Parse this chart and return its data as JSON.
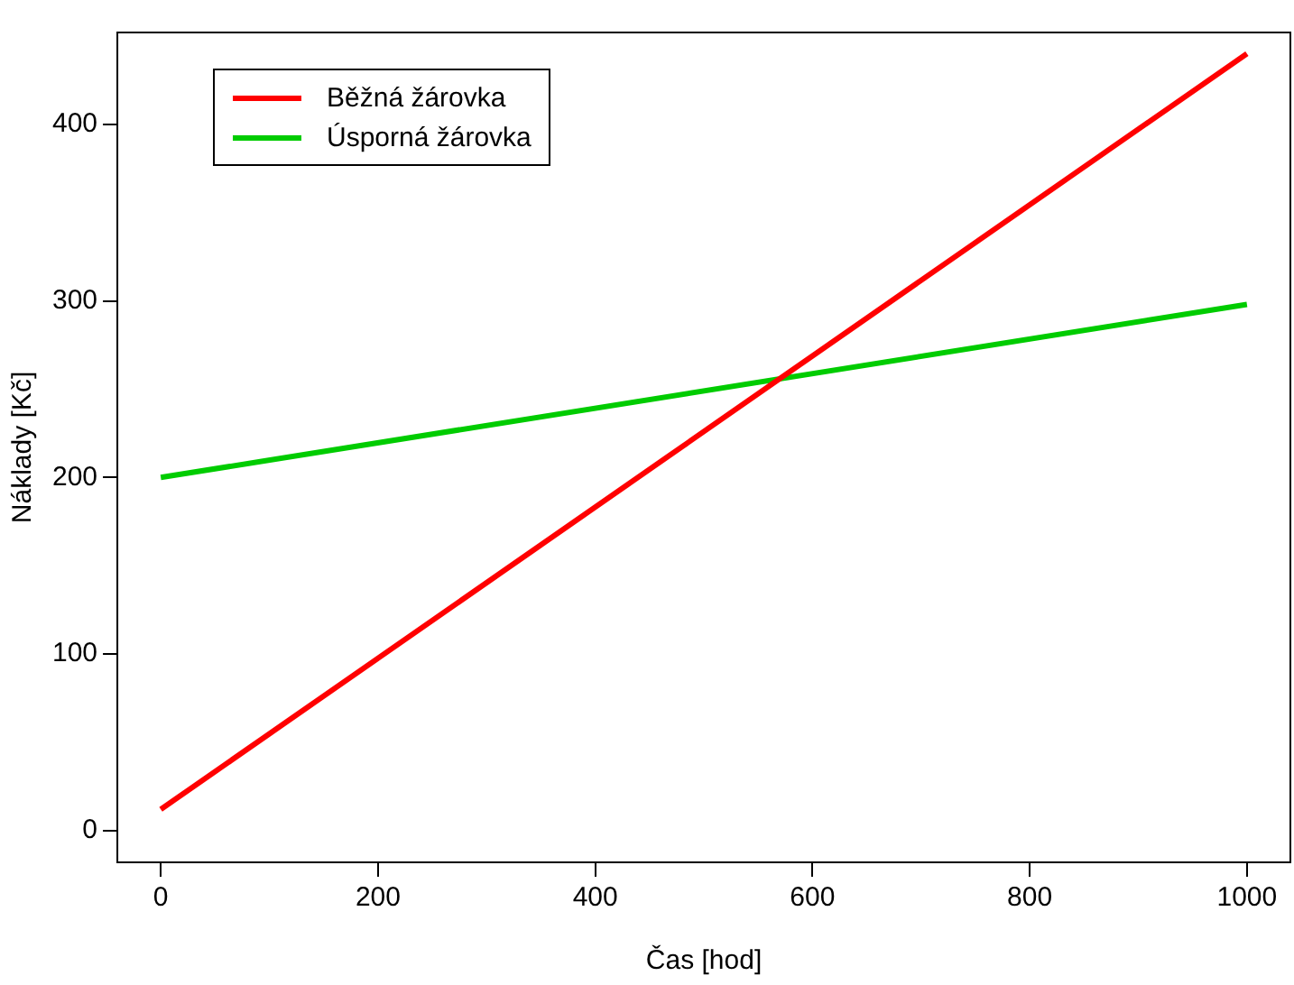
{
  "chart_data": {
    "type": "line",
    "xlabel": "Čas [hod]",
    "ylabel": "Náklady [Kč]",
    "x": [
      0,
      1000
    ],
    "series": [
      {
        "name": "Běžná žárovka",
        "color": "#ff0000",
        "values": [
          12,
          440
        ]
      },
      {
        "name": "Úsporná žárovka",
        "color": "#00cc00",
        "values": [
          200,
          298
        ]
      }
    ],
    "xlim": [
      -40,
      1040
    ],
    "xticks": [
      0,
      200,
      400,
      600,
      800,
      1000
    ],
    "ylim": [
      -18,
      452
    ],
    "yticks": [
      0,
      100,
      200,
      300,
      400
    ],
    "grid": false,
    "legend": "top left",
    "marker": "none",
    "line_style": "solid"
  }
}
